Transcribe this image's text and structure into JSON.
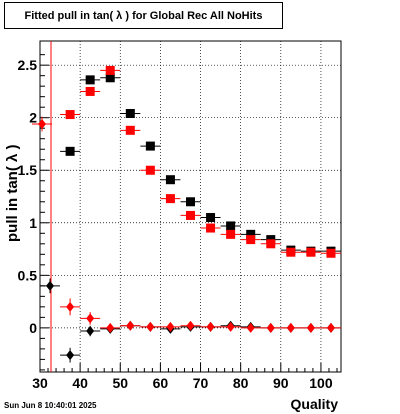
{
  "chart_data": {
    "type": "scatter",
    "title": "Fitted pull in tan( λ ) for Global Rec All NoHits",
    "xlabel": "Quality",
    "ylabel": "pull in tan( λ )",
    "xlim": [
      30,
      105
    ],
    "ylim": [
      -0.42,
      2.73
    ],
    "x_ticks": [
      30,
      40,
      50,
      60,
      70,
      80,
      90,
      100
    ],
    "y_ticks": [
      0,
      0.5,
      1,
      1.5,
      2,
      2.5
    ],
    "x_tick_labels": [
      "30",
      "40",
      "50",
      "60",
      "70",
      "80",
      "90",
      "100"
    ],
    "y_tick_labels": [
      "0",
      "0.5",
      "1",
      "1.5",
      "2",
      "2.5"
    ],
    "grid": true,
    "series": [
      {
        "marker": "square",
        "color": "#000000",
        "x": [
          37.5,
          42.5,
          47.5,
          52.5,
          57.5,
          62.5,
          67.5,
          72.5,
          77.5,
          82.5,
          87.5,
          92.5,
          97.5,
          102.5
        ],
        "y": [
          1.68,
          2.36,
          2.38,
          2.04,
          1.73,
          1.41,
          1.2,
          1.05,
          0.97,
          0.89,
          0.84,
          0.74,
          0.73,
          0.73
        ]
      },
      {
        "marker": "square",
        "color": "#ff0000",
        "x": [
          37.5,
          42.5,
          47.5,
          52.5,
          57.5,
          62.5,
          67.5,
          72.5,
          77.5,
          82.5,
          87.5,
          92.5,
          97.5,
          102.5
        ],
        "y": [
          2.03,
          2.25,
          2.45,
          1.88,
          1.5,
          1.23,
          1.07,
          0.95,
          0.89,
          0.84,
          0.8,
          0.72,
          0.72,
          0.71
        ]
      },
      {
        "marker": "diamond",
        "color": "#000000",
        "x": [
          32.5,
          37.5,
          42.5,
          47.5,
          52.5,
          57.5,
          62.5,
          67.5,
          72.5,
          77.5,
          82.5,
          87.5,
          92.5,
          97.5,
          102.5
        ],
        "y": [
          0.4,
          -0.26,
          -0.03,
          -0.01,
          0.02,
          0.01,
          -0.01,
          0.01,
          0.01,
          0.02,
          0.01,
          0.0,
          0.0,
          0.0,
          0.0
        ],
        "yerr": [
          0.07,
          0.07,
          0.05,
          0.02,
          0.02,
          0.02,
          0.02,
          0.02,
          0.02,
          0.02,
          0.02,
          0.0,
          0.0,
          0.0,
          0.0
        ]
      },
      {
        "marker": "diamond",
        "color": "#ff0000",
        "x": [
          30.5,
          37.5,
          42.5,
          47.5,
          52.5,
          57.5,
          62.5,
          67.5,
          72.5,
          77.5,
          82.5,
          87.5,
          92.5,
          97.5,
          102.5
        ],
        "y": [
          1.94,
          0.2,
          0.09,
          0.0,
          0.02,
          0.01,
          0.01,
          0.02,
          0.01,
          0.01,
          0.0,
          0.0,
          0.0,
          0.0,
          0.0
        ],
        "yerr": [
          0.07,
          0.08,
          0.06,
          0.02,
          0.02,
          0.02,
          0.02,
          0.02,
          0.02,
          0.02,
          0.02,
          0.0,
          0.0,
          0.0,
          0.0
        ]
      }
    ]
  },
  "footer": {
    "timestamp": "Sun Jun  8 10:40:01 2025"
  }
}
